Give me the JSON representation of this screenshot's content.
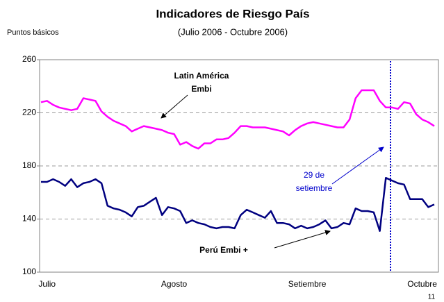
{
  "chart_data": {
    "type": "line",
    "title": "Indicadores de Riesgo País",
    "subtitle": "(Julio 2006 - Octubre 2006)",
    "y_label": "Puntos básicos",
    "page_number": "11",
    "annotations": [
      {
        "lines": [
          "Latin América",
          "Embi"
        ],
        "color": "#000000"
      },
      {
        "lines": [
          "29  de",
          "setiembre"
        ],
        "color": "#0000cc"
      },
      {
        "lines": [
          "Perú  Embi +"
        ],
        "color": "#000000"
      }
    ],
    "categories": [
      null,
      "Julio",
      null,
      null,
      null,
      null,
      null,
      null,
      null,
      null,
      null,
      null,
      null,
      null,
      null,
      null,
      null,
      null,
      null,
      null,
      null,
      null,
      "Agosto",
      null,
      null,
      null,
      null,
      null,
      null,
      null,
      null,
      null,
      null,
      null,
      null,
      null,
      null,
      null,
      null,
      null,
      null,
      null,
      null,
      null,
      "Setiembre",
      null,
      null,
      null,
      null,
      null,
      null,
      null,
      null,
      null,
      null,
      null,
      null,
      null,
      null,
      null,
      null,
      null,
      null,
      "Octubre",
      null,
      null
    ],
    "series": [
      {
        "color": "#ff00ff",
        "values": [
          228,
          229,
          226,
          224,
          223,
          222,
          223,
          231,
          230,
          229,
          221,
          217,
          214,
          212,
          210,
          206,
          208,
          210,
          209,
          208,
          207,
          205,
          204,
          196,
          198,
          195,
          193,
          197,
          197,
          200,
          200,
          201,
          205,
          210,
          210,
          209,
          209,
          209,
          208,
          207,
          206,
          203,
          207,
          210,
          212,
          213,
          212,
          211,
          210,
          209,
          209,
          215,
          231,
          237,
          237,
          237,
          229,
          224,
          224,
          223,
          228,
          227,
          219,
          215,
          213,
          210
        ]
      },
      {
        "color": "#000080",
        "values": [
          168,
          168,
          170,
          168,
          165,
          170,
          164,
          167,
          168,
          170,
          167,
          150,
          148,
          147,
          145,
          142,
          149,
          150,
          153,
          156,
          143,
          149,
          148,
          146,
          137,
          139,
          137,
          136,
          134,
          133,
          134,
          134,
          133,
          143,
          147,
          145,
          143,
          141,
          146,
          137,
          137,
          136,
          133,
          135,
          133,
          134,
          136,
          139,
          133,
          134,
          137,
          136,
          148,
          146,
          146,
          145,
          131,
          171,
          169,
          167,
          166,
          155,
          155,
          155,
          149,
          151
        ]
      }
    ],
    "ylim": [
      100,
      260
    ],
    "yticks": [
      100,
      140,
      180,
      220,
      260
    ],
    "grid": true
  }
}
